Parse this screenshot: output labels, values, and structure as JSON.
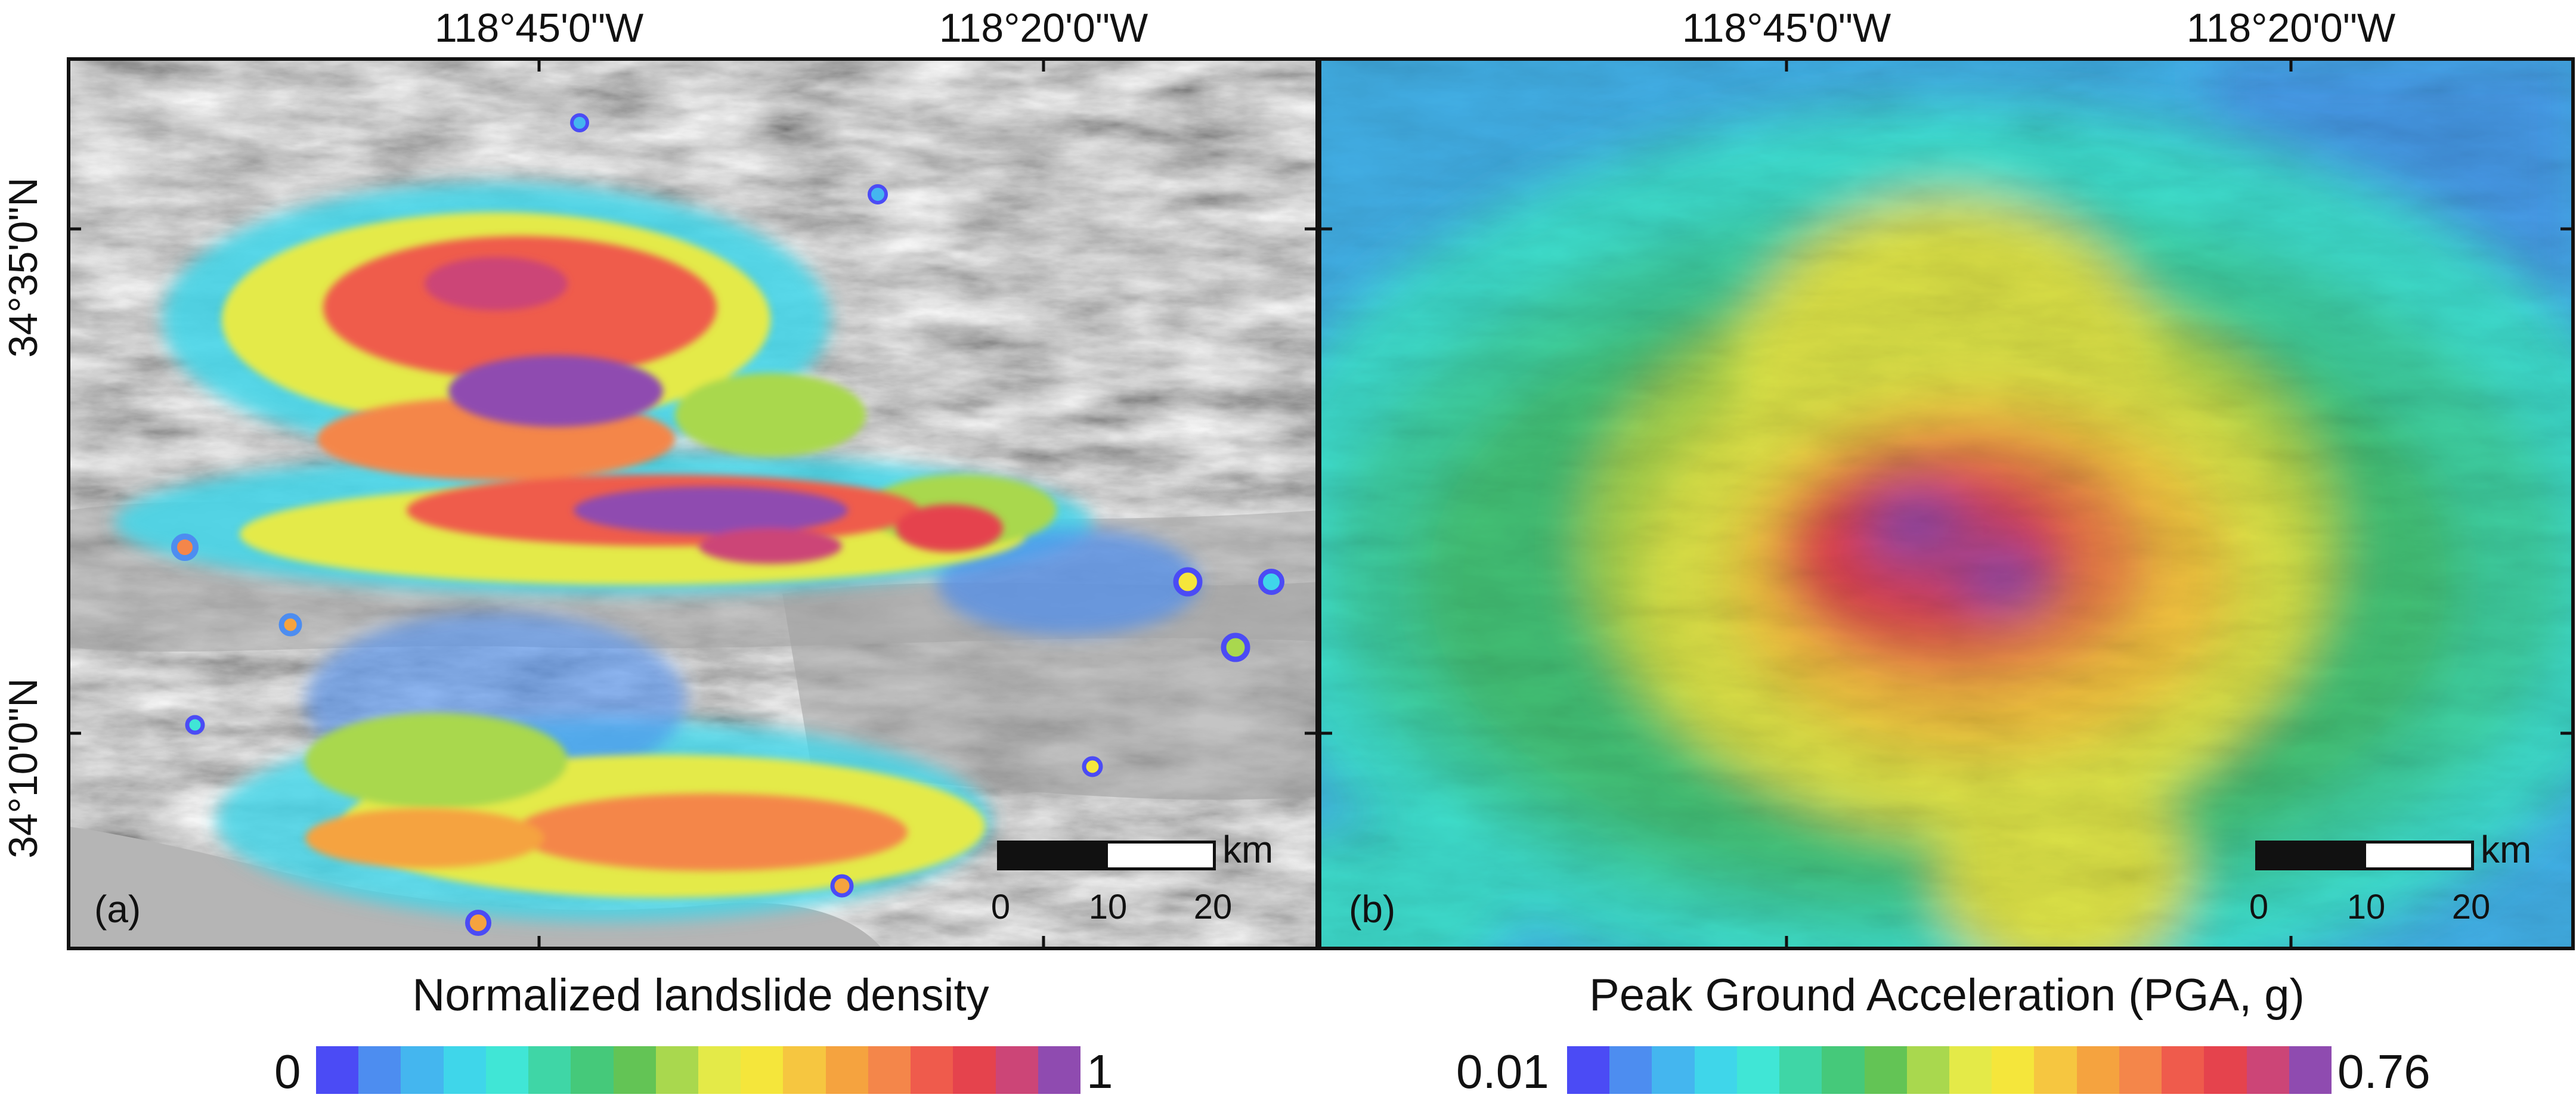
{
  "panels": {
    "a": {
      "label": "(a)"
    },
    "b": {
      "label": "(b)"
    }
  },
  "axes": {
    "top_ticks": [
      "118°45'0\"W",
      "118°20'0\"W"
    ],
    "left_ticks": [
      "34°35'0\"N",
      "34°10'0\"N"
    ]
  },
  "scale_bar": {
    "unit": "km",
    "ticks": [
      "0",
      "10",
      "20"
    ]
  },
  "legend_a": {
    "title": "Normalized landslide density",
    "min": "0",
    "max": "1"
  },
  "legend_b": {
    "title": "Peak Ground Acceleration (PGA, g)",
    "min": "0.01",
    "max": "0.76"
  },
  "colors": {
    "ramp": [
      "#4b4bf5",
      "#4d8df0",
      "#44b6ef",
      "#3fd6ea",
      "#40e6d6",
      "#3fd6a6",
      "#45c97a",
      "#63c455",
      "#a9d84e",
      "#e4ea48",
      "#f5e63b",
      "#f6c640",
      "#f5a33f",
      "#f4864a",
      "#ef5b4c",
      "#e5434d",
      "#cc4577",
      "#8f4bb0"
    ]
  }
}
